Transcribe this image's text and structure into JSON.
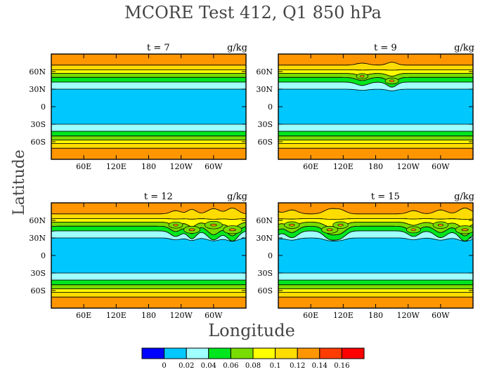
{
  "title": "MCORE Test 412, Q1 850 hPa",
  "xlabel": "Longitude",
  "ylabel": "Latitude",
  "chart_data": {
    "type": "heatmap",
    "panels": [
      {
        "panel_title": "t = 7",
        "units": "g/kg",
        "time": 7,
        "waves": []
      },
      {
        "panel_title": "t = 9",
        "units": "g/kg",
        "time": 9,
        "waves": [
          [
            155,
            30,
            6
          ],
          [
            210,
            25,
            9
          ]
        ]
      },
      {
        "panel_title": "t = 12",
        "units": "g/kg",
        "time": 12,
        "waves": [
          [
            230,
            26,
            10
          ],
          [
            260,
            22,
            14
          ],
          [
            300,
            30,
            16
          ],
          [
            335,
            28,
            18
          ]
        ]
      },
      {
        "panel_title": "t = 15",
        "units": "g/kg",
        "time": 15,
        "waves": [
          [
            25,
            30,
            12
          ],
          [
            95,
            30,
            14
          ],
          [
            115,
            28,
            12
          ],
          [
            250,
            28,
            10
          ],
          [
            300,
            30,
            12
          ],
          [
            345,
            30,
            18
          ]
        ]
      }
    ],
    "x_ticks": [
      "60E",
      "120E",
      "180",
      "120W",
      "60W"
    ],
    "x_tick_values": [
      60,
      120,
      180,
      240,
      300
    ],
    "y_ticks": [
      "60N",
      "30N",
      "0",
      "30S",
      "60S"
    ],
    "y_tick_values": [
      60,
      30,
      0,
      -30,
      -60
    ],
    "xlim": [
      0,
      360
    ],
    "ylim": [
      -90,
      90
    ],
    "levels": [
      0,
      0.02,
      0.04,
      0.06,
      0.08,
      0.1,
      0.12,
      0.14,
      0.16
    ],
    "colorbar_labels": [
      "0",
      "0.02",
      "0.04",
      "0.06",
      "0.08",
      "0.1",
      "0.12",
      "0.14",
      "0.16"
    ],
    "colors": [
      "#0000ff",
      "#00c8ff",
      "#a0ffff",
      "#00e61e",
      "#78dc00",
      "#ffff00",
      "#ffdc00",
      "#ff9600",
      "#ff3c00",
      "#ff0000"
    ],
    "band_edges": [
      {
        "lat_n": 71,
        "lat_s": 90,
        "level_index": 7
      },
      {
        "lat_n": 63,
        "lat_s": 71,
        "level_index": 6
      },
      {
        "lat_n": 57,
        "lat_s": 63,
        "level_index": 5
      },
      {
        "lat_n": 50,
        "lat_s": 57,
        "level_index": 4
      },
      {
        "lat_n": 42,
        "lat_s": 50,
        "level_index": 3
      },
      {
        "lat_n": 30,
        "lat_s": 42,
        "level_index": 2
      },
      {
        "lat_n": 0,
        "lat_s": 30,
        "level_index": 1
      }
    ]
  }
}
